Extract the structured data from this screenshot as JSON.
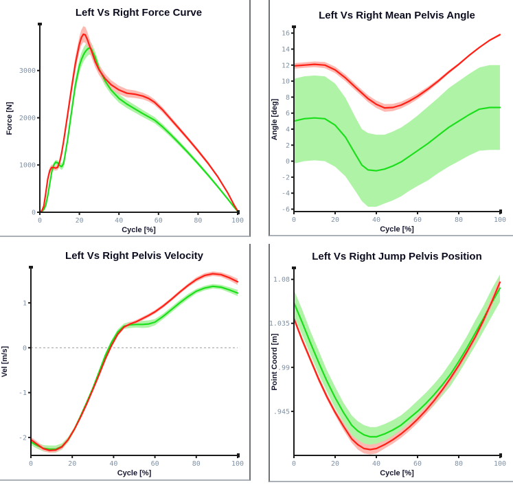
{
  "app": {
    "background": "#ffffff",
    "panel_border_vertical": "#6e7276",
    "panel_border_horizontal": "#aab0b8"
  },
  "styles": {
    "title_color": "#0d0d20",
    "axis_label_color": "#15152e",
    "tick_label_color": "#7f90a4",
    "axis_color": "#1a1a1a",
    "zero_line_color": "#9a9a9a",
    "red_line": "#ff1f14",
    "red_band": "#ffb9b3",
    "green_line": "#1cdf1c",
    "green_band": "#aff3a6"
  },
  "chart_data": [
    {
      "type": "line",
      "title": "Left Vs Right Force Curve",
      "xlabel": "Cycle [%]",
      "ylabel": "Force [N]",
      "xlim": [
        0,
        100
      ],
      "ylim": [
        0,
        3970
      ],
      "xticks": [
        0,
        20,
        40,
        60,
        80,
        100
      ],
      "yticks": [
        0,
        1000,
        2000,
        3000
      ],
      "ytick_labels": [
        "0",
        "1000",
        "2000",
        "3000"
      ],
      "zero_line": false,
      "series": [
        {
          "name": "red",
          "line_color": "#ff1f14",
          "band_color": "#ffb9b3",
          "x": [
            0,
            1,
            2,
            3,
            4,
            5,
            6,
            7,
            8,
            9,
            10,
            11,
            12,
            14,
            16,
            18,
            20,
            21,
            22,
            23,
            24,
            25,
            26,
            28,
            30,
            33,
            36,
            40,
            44,
            48,
            52,
            55,
            58,
            62,
            66,
            70,
            75,
            80,
            85,
            90,
            95,
            98,
            100
          ],
          "mean": [
            0,
            30,
            130,
            400,
            700,
            880,
            950,
            945,
            935,
            950,
            1060,
            1250,
            1500,
            2050,
            2620,
            3150,
            3560,
            3700,
            3770,
            3755,
            3660,
            3540,
            3430,
            3190,
            3010,
            2830,
            2700,
            2590,
            2520,
            2500,
            2460,
            2410,
            2330,
            2170,
            1980,
            1790,
            1550,
            1300,
            1040,
            750,
            410,
            170,
            30
          ],
          "band": [
            0,
            20,
            40,
            60,
            70,
            70,
            60,
            55,
            55,
            60,
            70,
            80,
            90,
            110,
            130,
            150,
            160,
            165,
            170,
            168,
            160,
            150,
            140,
            120,
            110,
            100,
            95,
            90,
            85,
            80,
            70,
            65,
            60,
            55,
            50,
            45,
            40,
            40,
            35,
            30,
            25,
            20,
            10
          ]
        },
        {
          "name": "green",
          "line_color": "#1cdf1c",
          "band_color": "#aff3a6",
          "x": [
            0,
            1,
            2,
            3,
            4,
            5,
            6,
            7,
            8,
            9,
            10,
            11,
            12,
            14,
            16,
            18,
            20,
            21,
            22,
            23,
            24,
            25,
            26,
            28,
            30,
            33,
            36,
            40,
            44,
            48,
            52,
            55,
            58,
            62,
            66,
            70,
            75,
            80,
            85,
            90,
            95,
            98,
            100
          ],
          "mean": [
            0,
            20,
            60,
            150,
            350,
            600,
            850,
            1000,
            1060,
            1045,
            990,
            965,
            1030,
            1520,
            2120,
            2700,
            3100,
            3230,
            3330,
            3400,
            3450,
            3480,
            3460,
            3280,
            3030,
            2780,
            2590,
            2410,
            2290,
            2190,
            2090,
            2020,
            1950,
            1810,
            1650,
            1480,
            1260,
            1030,
            790,
            540,
            280,
            120,
            20
          ],
          "band": [
            0,
            15,
            30,
            50,
            60,
            60,
            55,
            50,
            50,
            55,
            60,
            70,
            80,
            100,
            120,
            135,
            145,
            150,
            150,
            148,
            145,
            140,
            135,
            120,
            110,
            100,
            95,
            90,
            85,
            80,
            75,
            70,
            65,
            60,
            55,
            50,
            45,
            40,
            35,
            30,
            25,
            15,
            8
          ]
        }
      ]
    },
    {
      "type": "line",
      "title": "Left Vs Right Mean Pelvis Angle",
      "xlabel": "Cycle [%]",
      "ylabel": "Angle [deg]",
      "xlim": [
        0,
        100
      ],
      "ylim": [
        -6.3,
        16.7
      ],
      "xticks": [
        0,
        20,
        40,
        60,
        80,
        100
      ],
      "yticks": [
        -6,
        -4,
        -2,
        0,
        2,
        4,
        6,
        8,
        10,
        12,
        14,
        16
      ],
      "ytick_labels": [
        "-6",
        "-4",
        "-2",
        "0",
        "2",
        "4",
        "6",
        "8",
        "10",
        "12",
        "14",
        "16"
      ],
      "zero_line": false,
      "series": [
        {
          "name": "red",
          "line_color": "#ff1f14",
          "band_color": "#ffb9b3",
          "x": [
            0,
            5,
            10,
            15,
            20,
            25,
            30,
            33,
            36,
            40,
            44,
            48,
            52,
            56,
            60,
            65,
            70,
            75,
            80,
            85,
            90,
            95,
            100
          ],
          "mean": [
            11.9,
            12.0,
            12.1,
            12.0,
            11.4,
            10.4,
            9.2,
            8.5,
            7.8,
            7.1,
            6.65,
            6.7,
            7.0,
            7.5,
            8.1,
            9.0,
            10.0,
            11.1,
            12.1,
            13.2,
            14.2,
            15.1,
            15.8
          ],
          "band": [
            0.35,
            0.35,
            0.35,
            0.38,
            0.4,
            0.42,
            0.42,
            0.42,
            0.44,
            0.46,
            0.48,
            0.45,
            0.42,
            0.4,
            0.36,
            0.3,
            0.25,
            0.2,
            0.16,
            0.13,
            0.1,
            0.1,
            0.14
          ]
        },
        {
          "name": "green",
          "line_color": "#1cdf1c",
          "band_color": "#aff3a6",
          "x": [
            0,
            5,
            10,
            15,
            20,
            25,
            30,
            33,
            36,
            40,
            44,
            48,
            52,
            56,
            60,
            65,
            70,
            75,
            80,
            85,
            90,
            95,
            100
          ],
          "mean": [
            5.0,
            5.3,
            5.4,
            5.3,
            4.5,
            3.0,
            0.8,
            -0.5,
            -1.1,
            -1.2,
            -1.0,
            -0.6,
            -0.1,
            0.6,
            1.3,
            2.2,
            3.2,
            4.2,
            5.0,
            5.8,
            6.5,
            6.7,
            6.7
          ],
          "band": [
            5.3,
            5.3,
            5.3,
            5.3,
            5.2,
            4.9,
            4.6,
            4.5,
            4.6,
            4.5,
            4.3,
            4.3,
            4.3,
            4.3,
            4.4,
            4.6,
            4.7,
            4.9,
            5.0,
            5.1,
            5.2,
            5.3,
            5.3
          ]
        }
      ]
    },
    {
      "type": "line",
      "title": "Left Vs Right Pelvis Velocity",
      "xlabel": "Cycle [%]",
      "ylabel": "Vel [m/s]",
      "xlim": [
        0,
        100
      ],
      "ylim": [
        -2.4,
        1.78
      ],
      "xticks": [
        0,
        20,
        40,
        60,
        80,
        100
      ],
      "yticks": [
        -2,
        -1,
        0,
        1
      ],
      "ytick_labels": [
        "-2",
        "-1",
        "0",
        "1"
      ],
      "zero_line": true,
      "series": [
        {
          "name": "red",
          "line_color": "#ff1f14",
          "band_color": "#ffb9b3",
          "x": [
            0,
            3,
            6,
            9,
            12,
            15,
            18,
            21,
            24,
            27,
            30,
            33,
            36,
            39,
            42,
            45,
            48,
            51,
            54,
            57,
            60,
            64,
            68,
            72,
            76,
            80,
            84,
            88,
            92,
            96,
            100
          ],
          "mean": [
            -2.05,
            -2.15,
            -2.25,
            -2.29,
            -2.28,
            -2.21,
            -2.05,
            -1.82,
            -1.55,
            -1.25,
            -0.93,
            -0.6,
            -0.25,
            0.05,
            0.3,
            0.46,
            0.53,
            0.58,
            0.65,
            0.72,
            0.8,
            0.93,
            1.08,
            1.24,
            1.39,
            1.52,
            1.61,
            1.65,
            1.63,
            1.56,
            1.47
          ],
          "band": [
            0.06,
            0.06,
            0.05,
            0.05,
            0.05,
            0.05,
            0.04,
            0.04,
            0.04,
            0.04,
            0.04,
            0.04,
            0.04,
            0.04,
            0.04,
            0.04,
            0.04,
            0.04,
            0.04,
            0.04,
            0.04,
            0.04,
            0.04,
            0.04,
            0.04,
            0.05,
            0.05,
            0.05,
            0.05,
            0.06,
            0.07
          ]
        },
        {
          "name": "green",
          "line_color": "#1cdf1c",
          "band_color": "#aff3a6",
          "x": [
            0,
            3,
            6,
            9,
            12,
            15,
            18,
            21,
            24,
            27,
            30,
            33,
            36,
            39,
            42,
            45,
            48,
            51,
            54,
            57,
            60,
            64,
            68,
            72,
            76,
            80,
            84,
            88,
            92,
            96,
            100
          ],
          "mean": [
            -2.1,
            -2.18,
            -2.24,
            -2.26,
            -2.26,
            -2.2,
            -2.05,
            -1.82,
            -1.53,
            -1.22,
            -0.9,
            -0.54,
            -0.17,
            0.12,
            0.35,
            0.48,
            0.51,
            0.52,
            0.52,
            0.53,
            0.57,
            0.7,
            0.85,
            1.0,
            1.14,
            1.26,
            1.33,
            1.37,
            1.35,
            1.29,
            1.22
          ],
          "band": [
            0.07,
            0.07,
            0.07,
            0.08,
            0.08,
            0.07,
            0.06,
            0.05,
            0.05,
            0.05,
            0.05,
            0.05,
            0.05,
            0.05,
            0.06,
            0.06,
            0.07,
            0.07,
            0.08,
            0.08,
            0.07,
            0.06,
            0.06,
            0.06,
            0.06,
            0.05,
            0.05,
            0.05,
            0.05,
            0.06,
            0.07
          ]
        }
      ]
    },
    {
      "type": "line",
      "title": "Left Vs Right Jump Pelvis Position",
      "xlabel": "Cycle [%]",
      "ylabel": "Point Coord [m]",
      "xlim": [
        0,
        100
      ],
      "ylim": [
        0.9,
        1.091
      ],
      "xticks": [
        0,
        20,
        40,
        60,
        80,
        100
      ],
      "yticks": [
        0.945,
        0.99,
        1.035,
        1.08
      ],
      "ytick_labels": [
        ".945",
        ".99",
        "1.035",
        "1.08"
      ],
      "zero_line": false,
      "series": [
        {
          "name": "red",
          "line_color": "#ff1f14",
          "band_color": "#ffb9b3",
          "x": [
            0,
            4,
            8,
            12,
            16,
            20,
            24,
            28,
            31,
            34,
            37,
            40,
            44,
            48,
            52,
            56,
            60,
            64,
            68,
            72,
            76,
            80,
            84,
            88,
            92,
            96,
            100
          ],
          "mean": [
            1.04,
            1.018,
            0.998,
            0.978,
            0.96,
            0.944,
            0.93,
            0.917,
            0.911,
            0.907,
            0.906,
            0.907,
            0.911,
            0.916,
            0.922,
            0.929,
            0.937,
            0.946,
            0.956,
            0.967,
            0.979,
            0.992,
            1.006,
            1.021,
            1.038,
            1.057,
            1.077
          ],
          "band": [
            0.003,
            0.003,
            0.003,
            0.003,
            0.003,
            0.003,
            0.004,
            0.004,
            0.005,
            0.005,
            0.005,
            0.005,
            0.004,
            0.004,
            0.004,
            0.004,
            0.004,
            0.004,
            0.004,
            0.004,
            0.004,
            0.004,
            0.004,
            0.004,
            0.004,
            0.005,
            0.005
          ]
        },
        {
          "name": "green",
          "line_color": "#1cdf1c",
          "band_color": "#aff3a6",
          "x": [
            0,
            4,
            8,
            12,
            16,
            20,
            24,
            28,
            31,
            34,
            37,
            40,
            44,
            48,
            52,
            56,
            60,
            64,
            68,
            72,
            76,
            80,
            84,
            88,
            92,
            96,
            100
          ],
          "mean": [
            1.056,
            1.036,
            1.015,
            0.995,
            0.976,
            0.959,
            0.944,
            0.931,
            0.925,
            0.921,
            0.919,
            0.919,
            0.922,
            0.926,
            0.931,
            0.938,
            0.945,
            0.953,
            0.962,
            0.972,
            0.983,
            0.996,
            1.01,
            1.025,
            1.04,
            1.056,
            1.071
          ],
          "band": [
            0.013,
            0.013,
            0.012,
            0.012,
            0.011,
            0.011,
            0.01,
            0.01,
            0.01,
            0.01,
            0.01,
            0.01,
            0.01,
            0.01,
            0.01,
            0.01,
            0.011,
            0.011,
            0.011,
            0.011,
            0.012,
            0.012,
            0.012,
            0.013,
            0.013,
            0.014,
            0.014
          ]
        }
      ]
    }
  ]
}
